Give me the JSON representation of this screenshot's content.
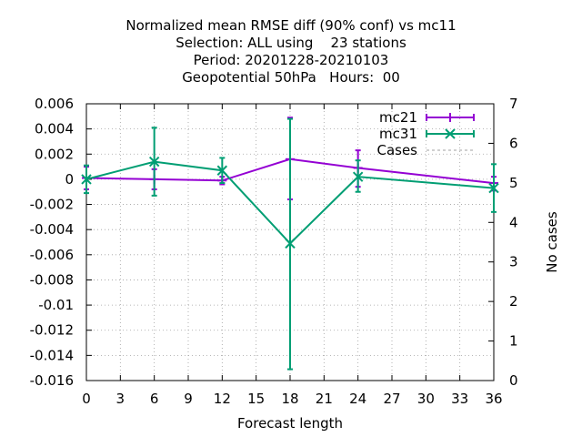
{
  "chart_data": {
    "type": "line",
    "title_lines": [
      "Normalized mean RMSE diff (90% conf) vs mc11",
      "Selection: ALL using    23 stations",
      "Period: 20201228-20210103",
      "Geopotential 50hPa   Hours:  00"
    ],
    "xlabel": "Forecast length",
    "ylabel": "",
    "y2label": "No cases",
    "xlim": [
      0,
      36
    ],
    "ylim": [
      -0.016,
      0.006
    ],
    "y2lim": [
      0,
      7
    ],
    "x_ticks": [
      0,
      3,
      6,
      9,
      12,
      15,
      18,
      21,
      24,
      27,
      30,
      33,
      36
    ],
    "y_ticks": [
      0.006,
      0.004,
      0.002,
      0,
      -0.002,
      -0.004,
      -0.006,
      -0.008,
      -0.01,
      -0.012,
      -0.014,
      -0.016
    ],
    "y_tick_labels": [
      "0.006",
      "0.004",
      "0.002",
      "0",
      "-0.002",
      "-0.004",
      "-0.006",
      "-0.008",
      "-0.01",
      "-0.012",
      "-0.014",
      "-0.016"
    ],
    "y2_ticks": [
      0,
      1,
      2,
      3,
      4,
      5,
      6,
      7
    ],
    "grid": true,
    "legend_position": "top-right",
    "series": [
      {
        "name": "mc21",
        "color": "#9400d3",
        "marker": "plus",
        "x": [
          0,
          6,
          12,
          18,
          24,
          36
        ],
        "y": [
          0.0001,
          0.0,
          -0.0001,
          0.0016,
          0.0009,
          -0.0003
        ],
        "err_low": [
          -0.0008,
          -0.0008,
          -0.0004,
          -0.0016,
          -0.0006,
          -0.0009
        ],
        "err_high": [
          0.001,
          0.0008,
          0.0002,
          0.0049,
          0.0023,
          0.0002
        ]
      },
      {
        "name": "mc31",
        "color": "#009e73",
        "marker": "cross",
        "x": [
          0,
          6,
          12,
          18,
          24,
          36
        ],
        "y": [
          0.0,
          0.0014,
          0.0007,
          -0.0051,
          0.0002,
          -0.0007
        ],
        "err_low": [
          -0.0011,
          -0.0013,
          -0.0003,
          -0.0151,
          -0.001,
          -0.0026
        ],
        "err_high": [
          0.0011,
          0.0041,
          0.0017,
          0.0048,
          0.0015,
          0.0012
        ]
      },
      {
        "name": "Cases",
        "color": "#a0a0a0",
        "style": "dashed",
        "axis": "y2"
      }
    ]
  }
}
